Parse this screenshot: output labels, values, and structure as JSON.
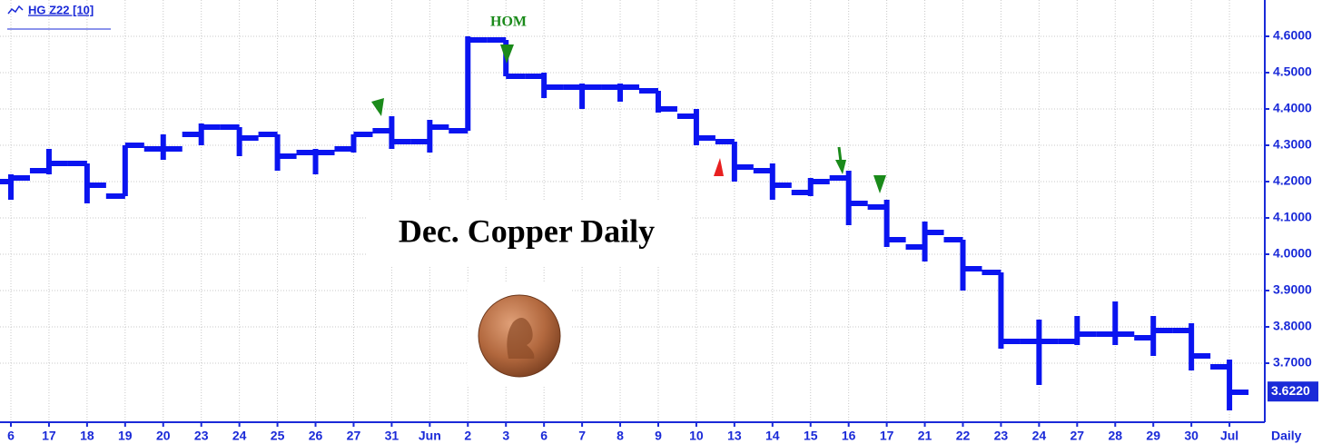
{
  "chart_data": {
    "type": "ohlc",
    "ticker": "HG Z22 [10]",
    "title": "Dec. Copper Daily",
    "annotation": "HOM",
    "period_label": "Daily",
    "categories": [
      "6",
      "17",
      "18",
      "19",
      "20",
      "23",
      "24",
      "25",
      "26",
      "27",
      "31",
      "Jun",
      "2",
      "3",
      "6",
      "7",
      "8",
      "9",
      "10",
      "13",
      "14",
      "15",
      "16",
      "17",
      "21",
      "22",
      "23",
      "24",
      "27",
      "28",
      "29",
      "30",
      "Jul"
    ],
    "open": [
      4.2,
      4.23,
      4.25,
      4.16,
      4.29,
      4.33,
      4.35,
      4.33,
      4.28,
      4.29,
      4.34,
      4.31,
      4.34,
      4.59,
      4.49,
      4.46,
      4.46,
      4.45,
      4.38,
      4.31,
      4.23,
      4.17,
      4.21,
      4.13,
      4.02,
      4.04,
      3.95,
      3.76,
      3.76,
      3.78,
      3.77,
      3.79,
      3.69
    ],
    "high": [
      4.22,
      4.29,
      4.25,
      4.3,
      4.33,
      4.36,
      4.35,
      4.33,
      4.29,
      4.33,
      4.38,
      4.37,
      4.6,
      4.59,
      4.5,
      4.47,
      4.47,
      4.45,
      4.4,
      4.31,
      4.25,
      4.21,
      4.23,
      4.15,
      4.09,
      4.04,
      3.95,
      3.82,
      3.83,
      3.87,
      3.83,
      3.81,
      3.71
    ],
    "low": [
      4.15,
      4.22,
      4.14,
      4.16,
      4.26,
      4.3,
      4.27,
      4.23,
      4.22,
      4.28,
      4.29,
      4.28,
      4.34,
      4.49,
      4.43,
      4.4,
      4.42,
      4.39,
      4.3,
      4.2,
      4.15,
      4.16,
      4.08,
      4.02,
      3.98,
      3.9,
      3.74,
      3.64,
      3.75,
      3.75,
      3.72,
      3.68,
      3.57
    ],
    "close": [
      4.21,
      4.25,
      4.19,
      4.3,
      4.29,
      4.35,
      4.32,
      4.27,
      4.28,
      4.33,
      4.31,
      4.35,
      4.59,
      4.49,
      4.46,
      4.46,
      4.46,
      4.4,
      4.32,
      4.24,
      4.19,
      4.2,
      4.14,
      4.04,
      4.06,
      3.96,
      3.76,
      3.76,
      3.78,
      3.78,
      3.79,
      3.72,
      3.62
    ],
    "color": "#0a14f0",
    "ylim": [
      3.55,
      4.7
    ],
    "yticks": [
      {
        "value": 3.7,
        "label": "3.7000"
      },
      {
        "value": 3.8,
        "label": "3.8000"
      },
      {
        "value": 3.9,
        "label": "3.9000"
      },
      {
        "value": 4.0,
        "label": "4.0000"
      },
      {
        "value": 4.1,
        "label": "4.1000"
      },
      {
        "value": 4.2,
        "label": "4.2000"
      },
      {
        "value": 4.3,
        "label": "4.3000"
      },
      {
        "value": 4.4,
        "label": "4.4000"
      },
      {
        "value": 4.5,
        "label": "4.5000"
      },
      {
        "value": 4.6,
        "label": "4.6000"
      }
    ],
    "last_price": {
      "value": 3.622,
      "label": "3.6220"
    },
    "grid": true
  }
}
